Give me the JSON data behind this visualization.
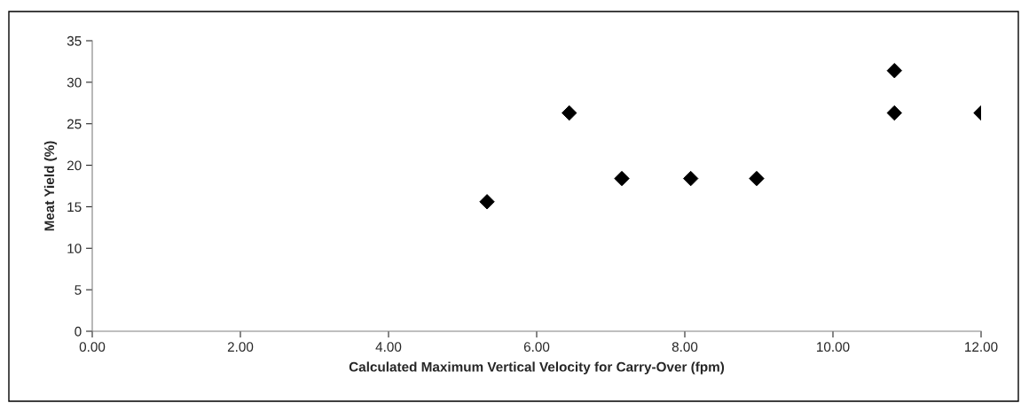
{
  "chart_data": {
    "type": "scatter",
    "xlabel": "Calculated Maximum Vertical Velocity for Carry-Over (fpm)",
    "ylabel": "Meat Yield (%)",
    "x": [
      5.33,
      6.44,
      7.15,
      8.08,
      8.97,
      10.83,
      10.83,
      12.0
    ],
    "series": [
      {
        "color": "#000000",
        "values": [
          15.6,
          26.3,
          18.4,
          18.4,
          18.4,
          31.4,
          26.3,
          26.3
        ]
      }
    ],
    "xlim": [
      0,
      12
    ],
    "xticks": [
      {
        "value": 0,
        "label": "0.00"
      },
      {
        "value": 2,
        "label": "2.00"
      },
      {
        "value": 4,
        "label": "4.00"
      },
      {
        "value": 6,
        "label": "6.00"
      },
      {
        "value": 8,
        "label": "8.00"
      },
      {
        "value": 10,
        "label": "10.00"
      },
      {
        "value": 12,
        "label": "12.00"
      }
    ],
    "ylim": [
      0,
      35
    ],
    "yticks": [
      0,
      5,
      10,
      15,
      20,
      25,
      30,
      35
    ],
    "marker": "diamond",
    "grid": false,
    "legend": false
  }
}
